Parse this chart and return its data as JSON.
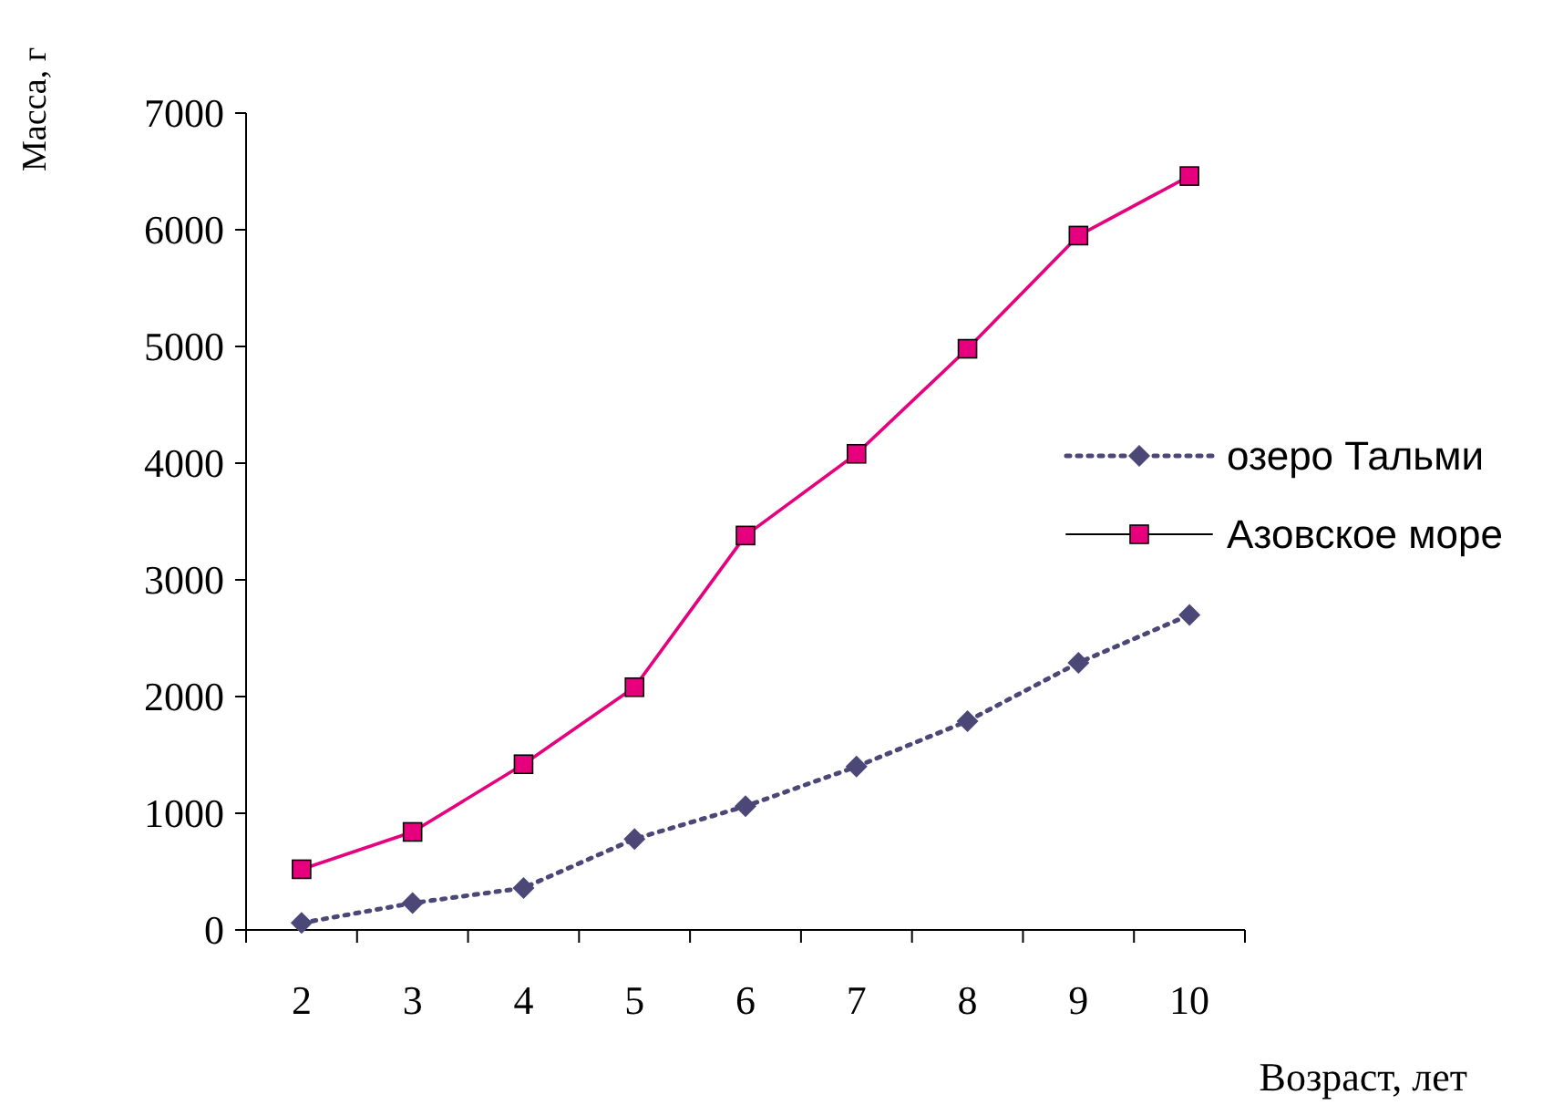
{
  "chart_data": {
    "type": "line",
    "xlabel": "Возраст, лет",
    "ylabel": "Масса, г",
    "categories": [
      "2",
      "3",
      "4",
      "5",
      "6",
      "7",
      "8",
      "9",
      "10"
    ],
    "ylim": [
      0,
      7000
    ],
    "yticks": [
      0,
      1000,
      2000,
      3000,
      4000,
      5000,
      6000,
      7000
    ],
    "legend": "right",
    "grid": false,
    "series": [
      {
        "name": "озеро Тальми",
        "color": "#4b4878",
        "marker": "diamond",
        "line_style": "dotted",
        "values": [
          60,
          230,
          360,
          780,
          1060,
          1400,
          1790,
          2290,
          2700
        ]
      },
      {
        "name": "Азовское море",
        "color": "#e6007e",
        "marker": "square",
        "line_style": "solid",
        "values": [
          520,
          840,
          1420,
          2080,
          3380,
          4080,
          4980,
          5950,
          6460
        ]
      }
    ]
  }
}
